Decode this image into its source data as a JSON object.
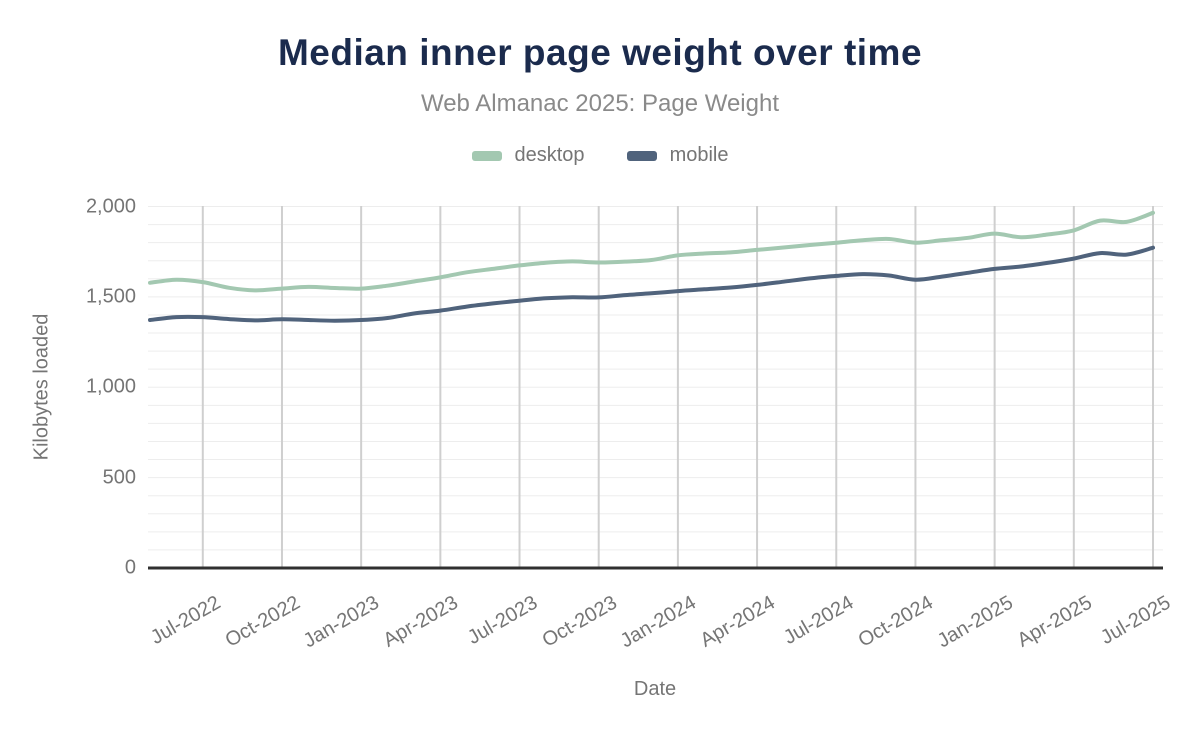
{
  "header": {
    "title": "Median inner page weight over time",
    "subtitle": "Web Almanac 2025: Page Weight"
  },
  "chart_data": {
    "type": "line",
    "title": "Median inner page weight over time",
    "subtitle": "Web Almanac 2025: Page Weight",
    "xlabel": "Date",
    "ylabel": "Kilobytes loaded",
    "legend_position": "top",
    "grid": {
      "horizontal_step_kb": 100,
      "vertical": "quarterly"
    },
    "ylim": [
      0,
      2000
    ],
    "y_ticks": {
      "values": [
        0,
        500,
        1000,
        1500,
        2000
      ],
      "labels": [
        "0",
        "500",
        "1,000",
        "1,500",
        "2,000"
      ]
    },
    "x": [
      "May-2022",
      "Jun-2022",
      "Jul-2022",
      "Aug-2022",
      "Sep-2022",
      "Oct-2022",
      "Nov-2022",
      "Dec-2022",
      "Jan-2023",
      "Feb-2023",
      "Mar-2023",
      "Apr-2023",
      "May-2023",
      "Jun-2023",
      "Jul-2023",
      "Aug-2023",
      "Sep-2023",
      "Oct-2023",
      "Nov-2023",
      "Dec-2023",
      "Jan-2024",
      "Feb-2024",
      "Mar-2024",
      "Apr-2024",
      "May-2024",
      "Jun-2024",
      "Jul-2024",
      "Aug-2024",
      "Sep-2024",
      "Oct-2024",
      "Nov-2024",
      "Dec-2024",
      "Jan-2025",
      "Feb-2025",
      "Mar-2025",
      "Apr-2025",
      "May-2025",
      "Jun-2025",
      "Jul-2025"
    ],
    "x_tick_labels": [
      "Jul-2022",
      "Oct-2022",
      "Jan-2023",
      "Apr-2023",
      "Jul-2023",
      "Oct-2023",
      "Jan-2024",
      "Apr-2024",
      "Jul-2024",
      "Oct-2024",
      "Jan-2025",
      "Apr-2025",
      "Jul-2025"
    ],
    "x_tick_indices": [
      2,
      5,
      8,
      11,
      14,
      17,
      20,
      23,
      26,
      29,
      32,
      35,
      38
    ],
    "series": [
      {
        "name": "desktop",
        "color": "#a3c8b1",
        "values": [
          1578,
          1595,
          1582,
          1550,
          1536,
          1546,
          1555,
          1549,
          1546,
          1562,
          1585,
          1608,
          1636,
          1655,
          1674,
          1689,
          1696,
          1690,
          1695,
          1704,
          1730,
          1740,
          1746,
          1760,
          1773,
          1787,
          1800,
          1813,
          1820,
          1800,
          1813,
          1827,
          1850,
          1830,
          1845,
          1868,
          1922,
          1915,
          1965
        ]
      },
      {
        "name": "mobile",
        "color": "#50637c",
        "values": [
          1372,
          1388,
          1388,
          1377,
          1370,
          1376,
          1372,
          1368,
          1372,
          1383,
          1408,
          1424,
          1446,
          1464,
          1479,
          1492,
          1498,
          1497,
          1510,
          1520,
          1532,
          1542,
          1552,
          1566,
          1584,
          1602,
          1616,
          1626,
          1618,
          1595,
          1612,
          1633,
          1655,
          1668,
          1688,
          1712,
          1742,
          1734,
          1772
        ]
      }
    ],
    "colors": {
      "title": "#1b2b4d",
      "subtitle": "#8a8a8a",
      "axis_text": "#757575",
      "axis_line": "#303030",
      "vertical_grid": "#cfcfcf",
      "horizontal_grid": "#ededed"
    }
  }
}
